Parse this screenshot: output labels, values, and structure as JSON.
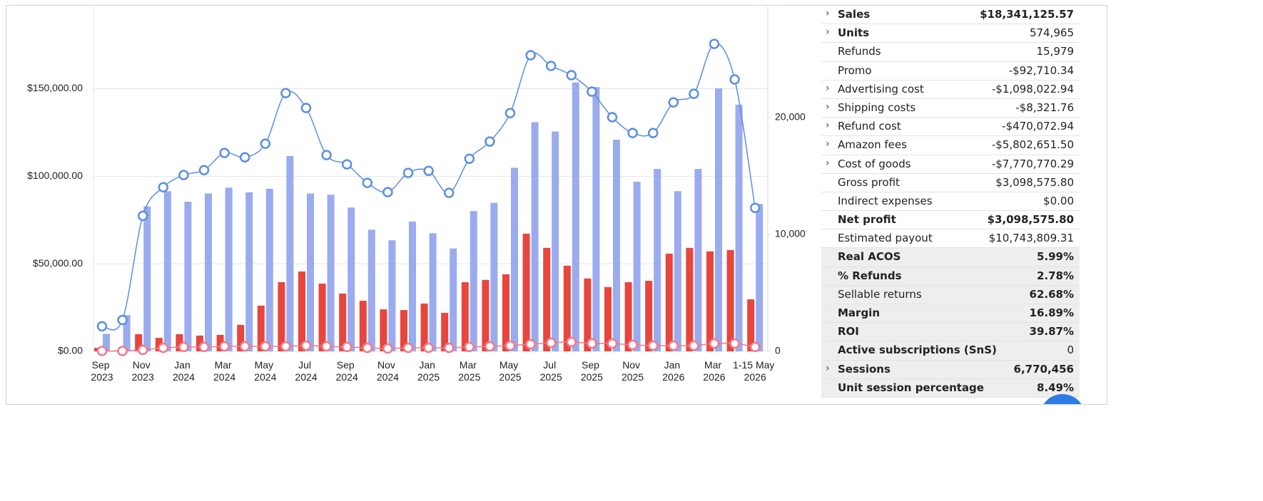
{
  "chart_data": {
    "type": "bar",
    "categories": [
      "Sep 2023",
      null,
      "Nov 2023",
      null,
      "Jan 2024",
      null,
      "Mar 2024",
      null,
      "May 2024",
      null,
      "Jul 2024",
      null,
      "Sep 2024",
      null,
      "Nov 2024",
      null,
      "Jan 2025",
      null,
      "Mar 2025",
      null,
      "May 2025",
      null,
      "Jul 2025",
      null,
      "Sep 2025",
      null,
      "Nov 2025",
      null,
      "Jan 2026",
      null,
      "Mar 2026",
      null,
      "1-15 May 2026"
    ],
    "series": [
      {
        "type": "bar",
        "axis": "y2",
        "color": "#9aabef",
        "values": [
          1500,
          3100,
          12400,
          13700,
          12800,
          13500,
          14000,
          13600,
          13900,
          16700,
          13500,
          13400,
          12300,
          10400,
          9500,
          11100,
          10100,
          8800,
          12000,
          12700,
          15700,
          19600,
          18800,
          23000,
          22600,
          18100,
          14500,
          15600,
          13700,
          15600,
          22500,
          21100,
          12600
        ]
      },
      {
        "type": "bar",
        "color": "#e8453c",
        "values": [
          2000,
          500,
          9800,
          7700,
          9800,
          9000,
          9400,
          15100,
          26100,
          39500,
          45600,
          38700,
          33000,
          28900,
          24000,
          23600,
          27300,
          22000,
          39500,
          40800,
          44000,
          67200,
          59100,
          48900,
          41600,
          36700,
          39500,
          40300,
          55800,
          59100,
          57100,
          57900,
          29700
        ]
      },
      {
        "type": "line",
        "color": "#5b8fde",
        "values": [
          14300,
          17900,
          77400,
          93700,
          100700,
          103500,
          113300,
          110800,
          118600,
          147500,
          139000,
          112100,
          106800,
          96200,
          90900,
          101900,
          103100,
          90500,
          110000,
          119800,
          136100,
          169100,
          163000,
          157700,
          148300,
          133700,
          124700,
          124700,
          142200,
          147100,
          175600,
          155300,
          81900
        ]
      },
      {
        "type": "line",
        "axis": "y2",
        "color": "#f07a8a",
        "values": [
          30,
          30,
          120,
          300,
          370,
          370,
          430,
          430,
          430,
          430,
          490,
          430,
          370,
          300,
          240,
          300,
          300,
          300,
          370,
          430,
          490,
          610,
          730,
          790,
          670,
          670,
          550,
          490,
          490,
          490,
          670,
          670,
          370
        ]
      }
    ],
    "ylim": [
      0,
      197000
    ],
    "yticks": [
      {
        "value": 0,
        "label": "$0.00"
      },
      {
        "value": 50000,
        "label": "$50,000.00"
      },
      {
        "value": 100000,
        "label": "$100,000.00"
      },
      {
        "value": 150000,
        "label": "$150,000.00"
      }
    ],
    "y2lim": [
      0,
      29500
    ],
    "y2ticks": [
      0,
      {
        "value": 10000,
        "label": "10,000"
      },
      {
        "value": 20000,
        "label": "20,000"
      }
    ],
    "grid": true
  },
  "metrics": [
    {
      "label": "Sales",
      "value": "$18,341,125.57"
    },
    {
      "label": "Units",
      "value": "574,965"
    },
    {
      "label": "Refunds",
      "value": "15,979"
    },
    {
      "label": "Promo",
      "value": "-$92,710.34"
    },
    {
      "label": "Advertising cost",
      "value": "-$1,098,022.94"
    },
    {
      "label": "Shipping costs",
      "value": "-$8,321.76"
    },
    {
      "label": "Refund cost",
      "value": "-$470,072.94"
    },
    {
      "label": "Amazon fees",
      "value": "-$5,802,651.50"
    },
    {
      "label": "Cost of goods",
      "value": "-$7,770,770.29"
    },
    {
      "label": "Gross profit",
      "value": "$3,098,575.80"
    },
    {
      "label": "Indirect expenses",
      "value": "$0.00"
    },
    {
      "label": "Net profit",
      "value": "$3,098,575.80"
    },
    {
      "label": "Estimated payout",
      "value": "$10,743,809.31"
    },
    {
      "label": "Real ACOS",
      "value": "5.99%"
    },
    {
      "label": "% Refunds",
      "value": "2.78%"
    },
    {
      "label": "Sellable returns",
      "value": "62.68%"
    },
    {
      "label": "Margin",
      "value": "16.89%"
    },
    {
      "label": "ROI",
      "value": "39.87%"
    },
    {
      "label": "Active subscriptions (SnS)",
      "value": "0"
    },
    {
      "label": "Sessions",
      "value": "6,770,456"
    },
    {
      "label": "Unit session percentage",
      "value": "8.49%"
    }
  ]
}
